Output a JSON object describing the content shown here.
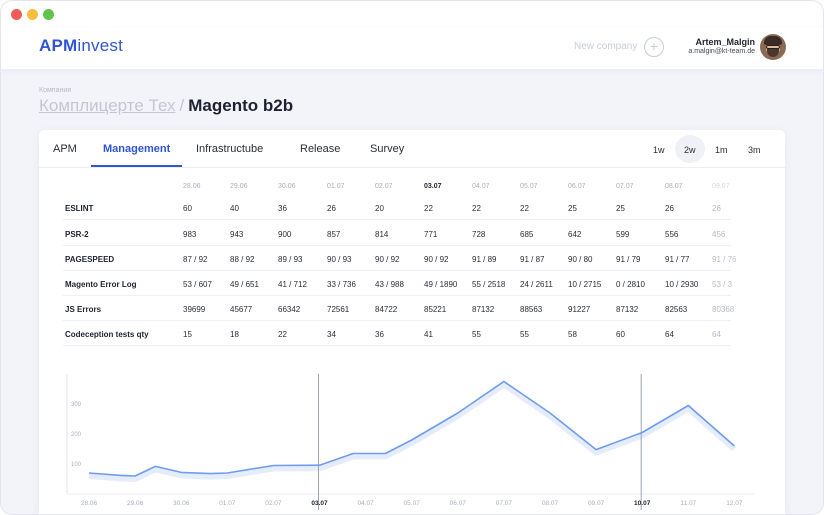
{
  "app": {
    "logo_primary": "APM",
    "logo_secondary": "invest",
    "new_company_label": "New company",
    "new_company_icon": "plus-icon"
  },
  "user": {
    "name": "Artem_Malgin",
    "email": "a.malgin@kt-team.de"
  },
  "breadcrumb": {
    "section_label": "Компания",
    "parent": "Комплицерте Тех",
    "separator": "/",
    "current": "Magento b2b"
  },
  "tabs": [
    {
      "label": "APM"
    },
    {
      "label": "Management"
    },
    {
      "label": "Infrastructube"
    },
    {
      "label": "Release"
    },
    {
      "label": "Survey"
    }
  ],
  "periods": [
    {
      "label": "1w"
    },
    {
      "label": "2w"
    },
    {
      "label": "1m"
    },
    {
      "label": "3m"
    }
  ],
  "colors": {
    "accent": "#2f55d4",
    "line": "#6f9cf0"
  },
  "table": {
    "dates": [
      "28.06",
      "29.06",
      "30.06",
      "01.07",
      "02.07",
      "03.07",
      "04.07",
      "05.07",
      "06.07",
      "07.07",
      "08.07",
      "09.07"
    ],
    "rows": [
      {
        "metric": "ESLINT",
        "values": [
          "60",
          "40",
          "36",
          "26",
          "20",
          "22",
          "22",
          "22",
          "25",
          "25",
          "26",
          "26"
        ]
      },
      {
        "metric": "PSR-2",
        "values": [
          "983",
          "943",
          "900",
          "857",
          "814",
          "771",
          "728",
          "685",
          "642",
          "599",
          "556",
          "456"
        ]
      },
      {
        "metric": "PAGESPEED",
        "values": [
          "87 / 92",
          "88 / 92",
          "89 / 93",
          "90 / 93",
          "90 / 92",
          "90 / 92",
          "91 / 89",
          "91 / 87",
          "90 / 80",
          "91 / 79",
          "91 / 77",
          "91 / 76"
        ]
      },
      {
        "metric": "Magento Error Log",
        "values": [
          "53 / 607",
          "49 / 651",
          "41 / 712",
          "33 / 736",
          "43 / 988",
          "49 / 1890",
          "55 / 2518",
          "24 / 2611",
          "10 / 2715",
          "0 / 2810",
          "10 / 2930",
          "53 / 3"
        ]
      },
      {
        "metric": "JS Errors",
        "values": [
          "39699",
          "45677",
          "66342",
          "72561",
          "84722",
          "85221",
          "87132",
          "88563",
          "91227",
          "87132",
          "82563",
          "80368"
        ]
      },
      {
        "metric": "Codeception tests qty",
        "values": [
          "15",
          "18",
          "22",
          "34",
          "36",
          "41",
          "55",
          "55",
          "58",
          "60",
          "64",
          "64"
        ]
      }
    ]
  },
  "chart_data": {
    "type": "line",
    "x": [
      "28.06",
      "29.06",
      "30.06",
      "01.07",
      "02.07",
      "03.07",
      "04.07",
      "05.07",
      "06.07",
      "07.07",
      "08.07",
      "09.07",
      "10.07",
      "11.07",
      "12.07"
    ],
    "x_ticks": [
      "28.06",
      "29.06",
      "30.06",
      "01.07",
      "02.07",
      "03.07",
      "04.07",
      "05.07",
      "06.07",
      "07.07",
      "08.07",
      "09.07",
      "10.07",
      "11.07",
      "12.07"
    ],
    "x_ticks_bold": [
      "03.07",
      "10.07"
    ],
    "y_ticks": [
      "100",
      "200",
      "300"
    ],
    "ylim": [
      0,
      400
    ],
    "highlight_lines": [
      "03.07",
      "10.07"
    ],
    "points": [
      {
        "x": "28.06",
        "y": 70
      },
      {
        "x": "28.75",
        "y": 62
      },
      {
        "x": "29.06",
        "y": 60
      },
      {
        "x": "29.5",
        "y": 92
      },
      {
        "x": "30.06",
        "y": 72
      },
      {
        "x": "30.7",
        "y": 68
      },
      {
        "x": "01.07",
        "y": 70
      },
      {
        "x": "02.07",
        "y": 95
      },
      {
        "x": "03.07",
        "y": 96
      },
      {
        "x": "03.8",
        "y": 135
      },
      {
        "x": "04.5",
        "y": 135
      },
      {
        "x": "05.07",
        "y": 180
      },
      {
        "x": "06.07",
        "y": 270
      },
      {
        "x": "07.07",
        "y": 375
      },
      {
        "x": "08.07",
        "y": 270
      },
      {
        "x": "09.07",
        "y": 148
      },
      {
        "x": "10.07",
        "y": 205
      },
      {
        "x": "11.07",
        "y": 295
      },
      {
        "x": "12.07",
        "y": 160
      }
    ],
    "grid": false,
    "legend": "none"
  }
}
